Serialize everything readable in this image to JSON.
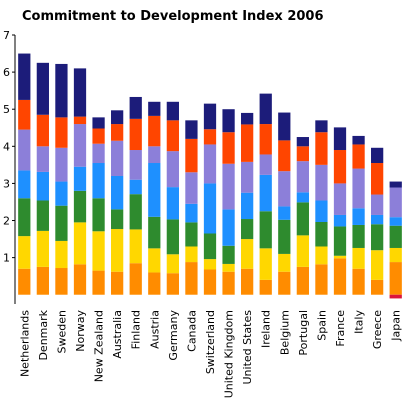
{
  "chart_data": {
    "type": "bar",
    "stacked": true,
    "title": "Commitment to Development Index 2006",
    "xlabel": "",
    "ylabel": "",
    "ylim": [
      -0.25,
      7
    ],
    "yticks": [
      1,
      2,
      3,
      4,
      5,
      6,
      7
    ],
    "grid": false,
    "legend": "none",
    "categories": [
      "Netherlands",
      "Denmark",
      "Sweden",
      "Norway",
      "New Zealand",
      "Australia",
      "Finland",
      "Austria",
      "Germany",
      "Canada",
      "Switzerland",
      "United Kingdom",
      "United States",
      "Ireland",
      "Belgium",
      "Portugal",
      "Spain",
      "France",
      "Italy",
      "Greece",
      "Japan"
    ],
    "series": [
      {
        "color": "#ff8c00",
        "values": [
          0.7,
          0.75,
          0.72,
          0.82,
          0.65,
          0.62,
          0.85,
          0.6,
          0.58,
          0.88,
          0.68,
          0.62,
          0.7,
          0.4,
          0.62,
          0.75,
          0.82,
          0.98,
          0.7,
          0.4,
          0.88
        ]
      },
      {
        "color": "#ffd700",
        "values": [
          0.88,
          0.97,
          0.73,
          1.13,
          1.06,
          1.15,
          0.91,
          0.65,
          0.51,
          0.42,
          0.28,
          0.21,
          0.8,
          0.85,
          0.48,
          0.85,
          0.48,
          0.07,
          0.56,
          0.8,
          0.38
        ]
      },
      {
        "color": "#2e8b2e",
        "values": [
          1.02,
          0.82,
          0.95,
          0.85,
          0.89,
          0.53,
          0.95,
          0.85,
          0.94,
          0.65,
          0.69,
          0.49,
          0.54,
          1.0,
          0.92,
          0.89,
          0.66,
          0.79,
          0.62,
          0.7,
          0.6
        ]
      },
      {
        "color": "#1e90ff",
        "values": [
          0.75,
          0.77,
          0.65,
          0.65,
          0.95,
          0.9,
          0.39,
          1.45,
          0.87,
          0.5,
          1.35,
          0.98,
          0.71,
          0.98,
          0.36,
          0.27,
          0.58,
          0.31,
          0.45,
          0.25,
          0.23
        ]
      },
      {
        "color": "#8c7fd9",
        "values": [
          1.1,
          0.69,
          0.91,
          1.15,
          0.52,
          0.95,
          0.8,
          0.45,
          0.97,
          0.85,
          1.05,
          1.23,
          0.83,
          0.55,
          0.95,
          0.84,
          0.96,
          0.85,
          1.07,
          0.55,
          0.8
        ]
      },
      {
        "color": "#ff4500",
        "values": [
          0.8,
          0.85,
          0.82,
          0.2,
          0.41,
          0.45,
          0.84,
          0.82,
          0.83,
          0.9,
          0.41,
          0.85,
          1.01,
          0.82,
          0.83,
          0.4,
          0.88,
          0.9,
          0.65,
          0.85,
          0.0
        ]
      },
      {
        "color": "#1c1c7a",
        "values": [
          1.25,
          1.4,
          1.44,
          1.3,
          0.3,
          0.37,
          0.59,
          0.38,
          0.5,
          0.5,
          0.69,
          0.62,
          0.31,
          0.82,
          0.75,
          0.25,
          0.32,
          0.61,
          0.23,
          0.41,
          0.16
        ]
      },
      {
        "color": "#dc143c",
        "values": [
          0,
          0,
          0,
          0,
          0,
          0,
          0,
          0,
          0,
          0,
          0,
          0,
          0,
          0,
          0,
          0,
          0,
          0,
          0,
          0,
          -0.1
        ]
      }
    ]
  }
}
